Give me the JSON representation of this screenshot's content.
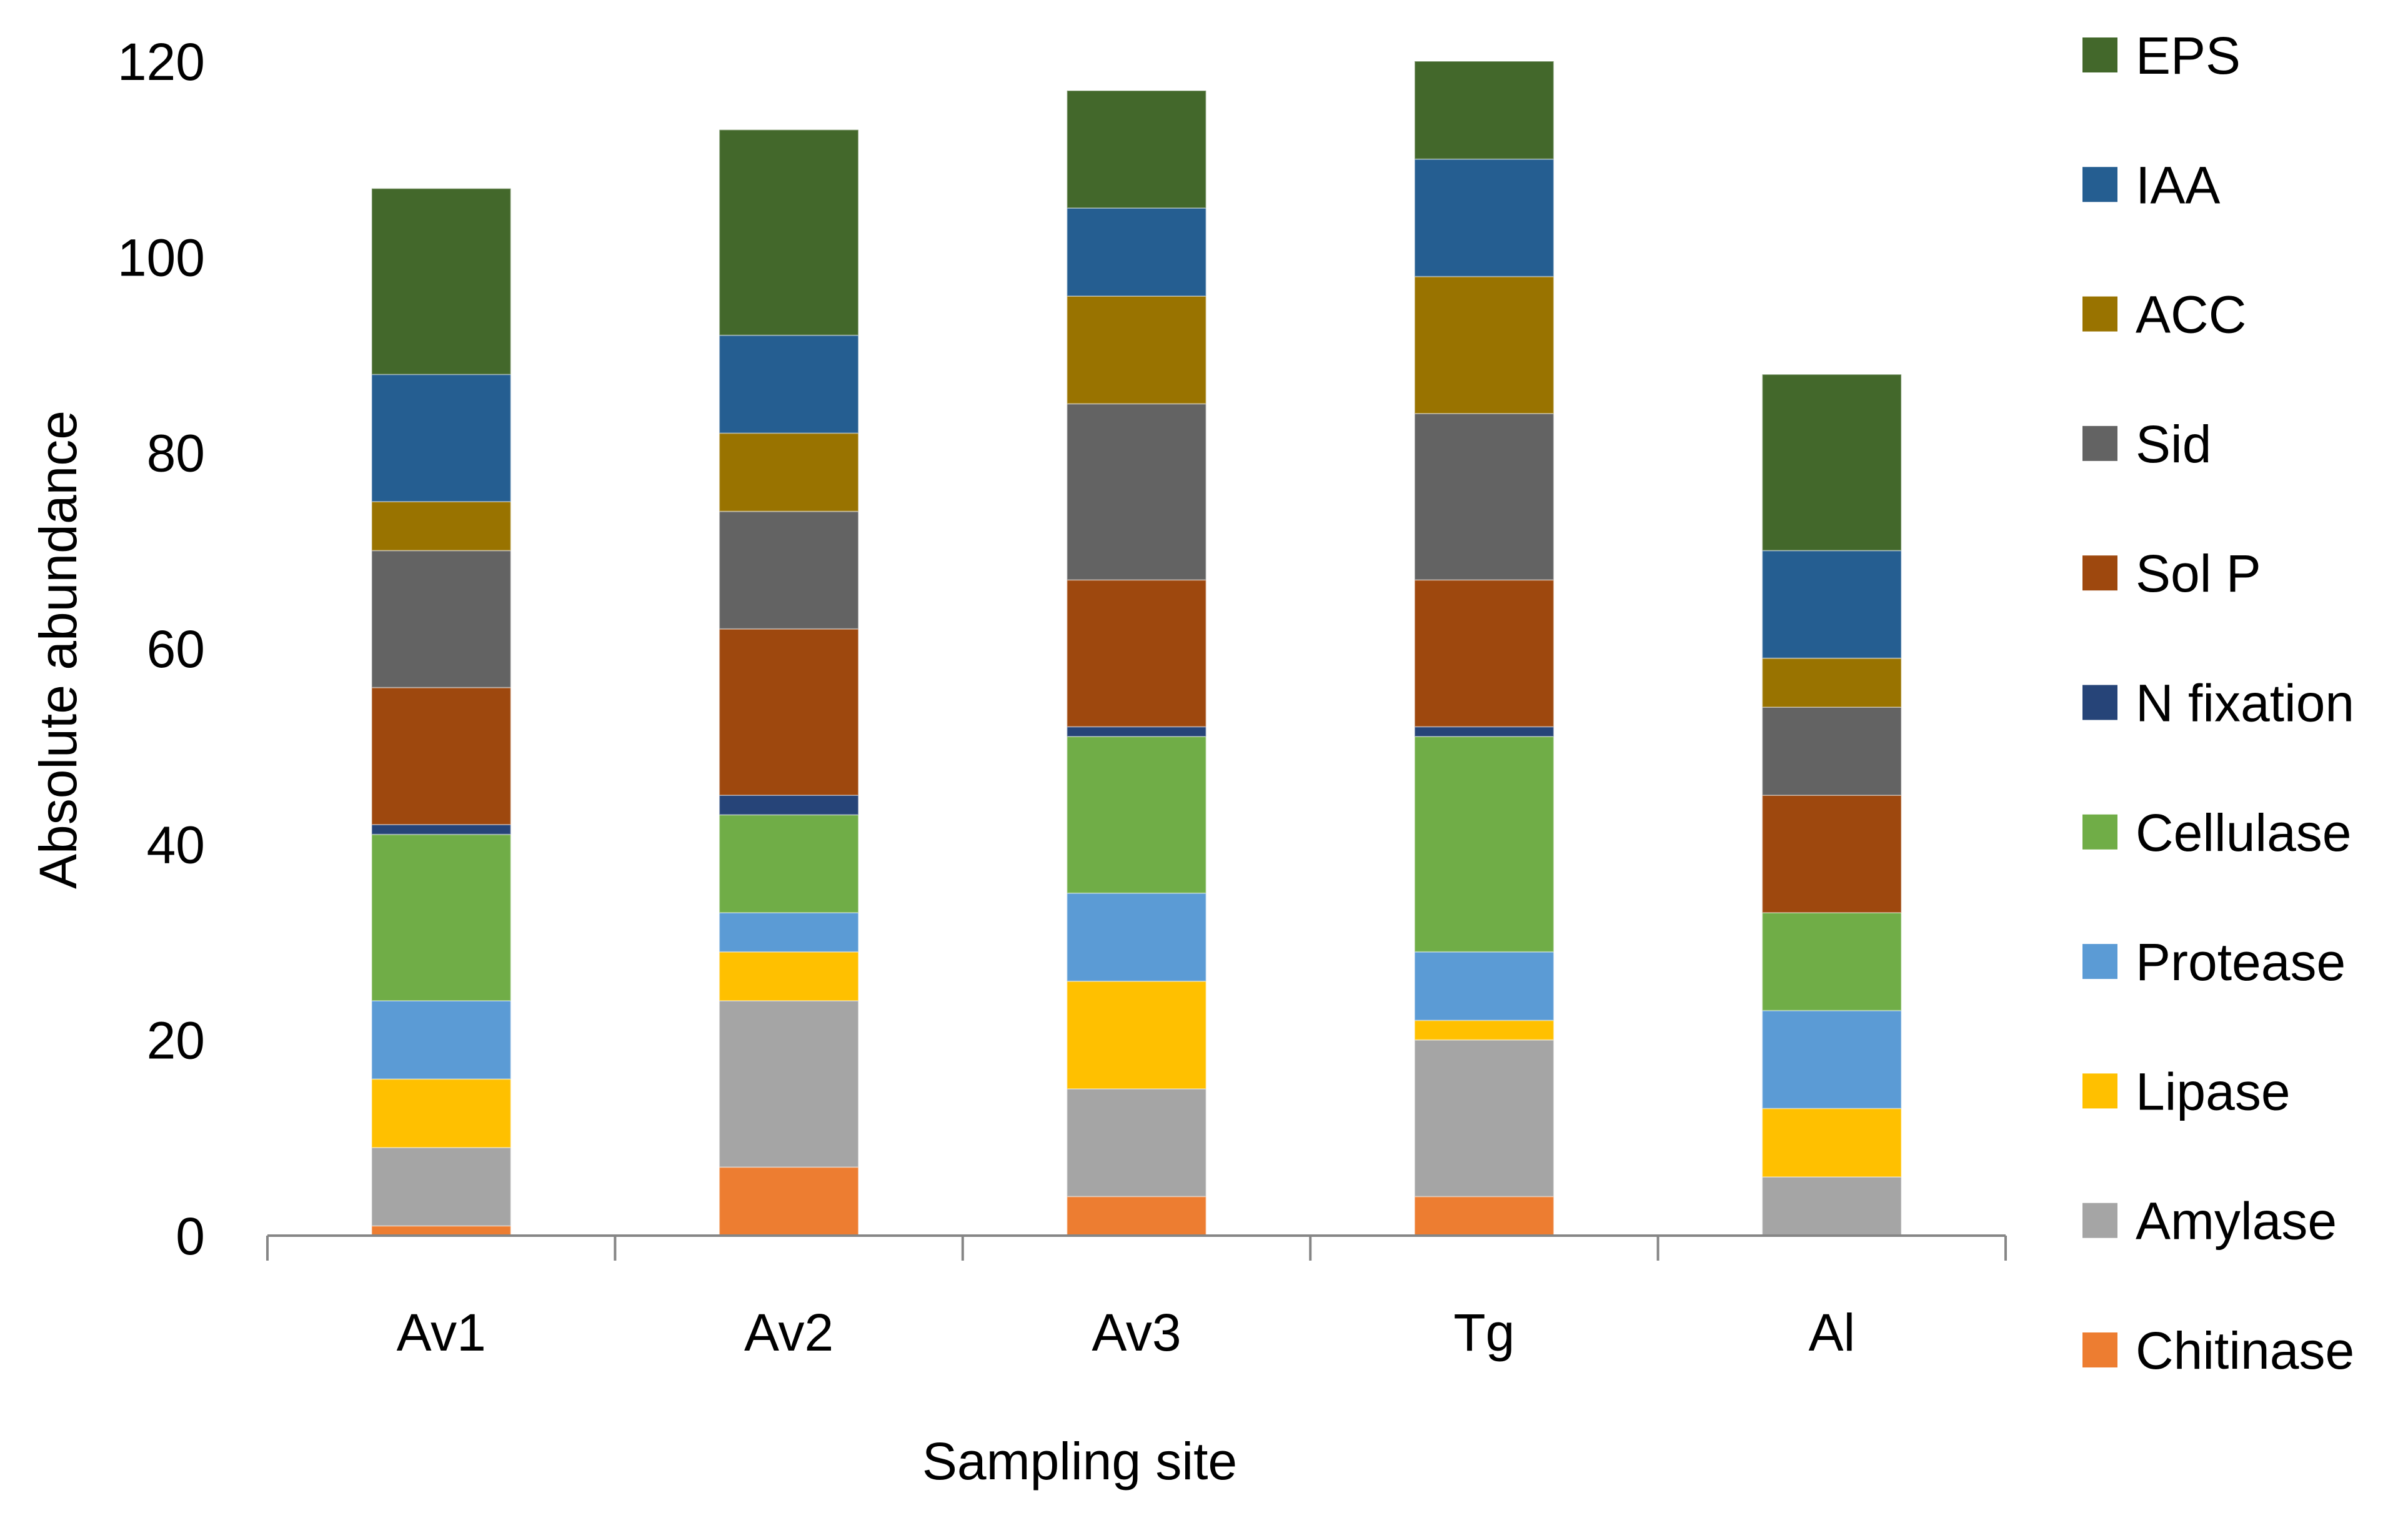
{
  "chart_data": {
    "type": "bar",
    "stacked": true,
    "title": "",
    "xlabel": "Sampling site",
    "ylabel": "Absolute abundance",
    "ylim": [
      0,
      120
    ],
    "yticks": [
      0,
      20,
      40,
      60,
      80,
      100,
      120
    ],
    "grid": false,
    "legend_position": "right",
    "categories": [
      "Av1",
      "Av2",
      "Av3",
      "Tg",
      "Al"
    ],
    "series": [
      {
        "name": "Chitinase",
        "color": "#ED7D31",
        "values": [
          1,
          7,
          4,
          4,
          0
        ]
      },
      {
        "name": "Amylase",
        "color": "#A5A5A5",
        "values": [
          8,
          17,
          11,
          16,
          6
        ]
      },
      {
        "name": "Lipase",
        "color": "#FFC000",
        "values": [
          7,
          5,
          11,
          2,
          7
        ]
      },
      {
        "name": "Protease",
        "color": "#5B9BD5",
        "values": [
          8,
          4,
          9,
          7,
          10
        ]
      },
      {
        "name": "Cellulase",
        "color": "#70AD47",
        "values": [
          17,
          10,
          16,
          22,
          10
        ]
      },
      {
        "name": "N fixation",
        "color": "#264478",
        "values": [
          1,
          2,
          1,
          1,
          0
        ]
      },
      {
        "name": "Sol P",
        "color": "#9E480E",
        "values": [
          14,
          17,
          15,
          15,
          12
        ]
      },
      {
        "name": "Sid",
        "color": "#636363",
        "values": [
          14,
          12,
          18,
          17,
          9
        ]
      },
      {
        "name": "ACC",
        "color": "#997300",
        "values": [
          5,
          8,
          11,
          14,
          5
        ]
      },
      {
        "name": "IAA",
        "color": "#255E91",
        "values": [
          13,
          10,
          9,
          12,
          11
        ]
      },
      {
        "name": "EPS",
        "color": "#43682B",
        "values": [
          19,
          21,
          12,
          10,
          18
        ]
      }
    ],
    "legend_order": [
      "EPS",
      "IAA",
      "ACC",
      "Sid",
      "Sol P",
      "N fixation",
      "Cellulase",
      "Protease",
      "Lipase",
      "Amylase",
      "Chitinase"
    ]
  }
}
